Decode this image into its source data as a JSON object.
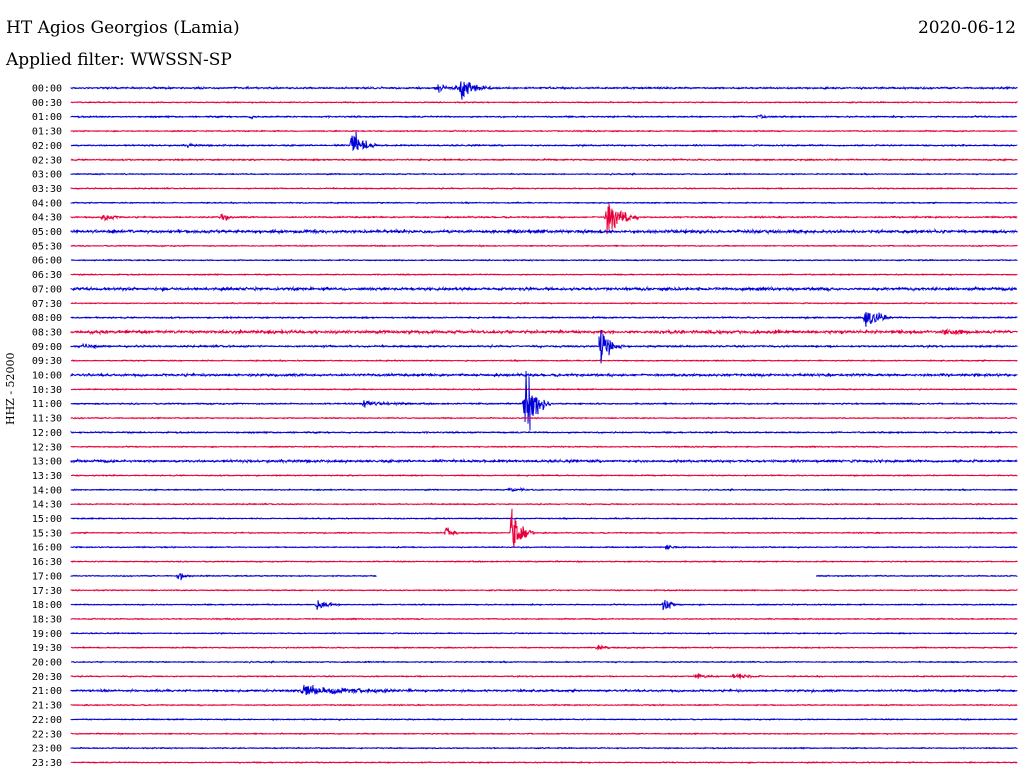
{
  "header": {
    "station_title": "HT Agios Georgios (Lamia)",
    "date": "2020-06-12",
    "filter_label": "Applied filter: WWSSN-SP",
    "channel_label": "HHZ - 52000"
  },
  "colors": {
    "blue": "#0000d8",
    "red": "#e8003a",
    "text": "#000000",
    "background": "#ffffff"
  },
  "chart_data": {
    "type": "line",
    "title": "HT Agios Georgios (Lamia)",
    "subtitle": "Applied filter: WWSSN-SP",
    "ylabel": "HHZ - 52000",
    "date": "2020-06-12",
    "trace_minutes": 30,
    "trace_colors": [
      "blue",
      "red"
    ],
    "categories": [
      "00:00",
      "00:30",
      "01:00",
      "01:30",
      "02:00",
      "02:30",
      "03:00",
      "03:30",
      "04:00",
      "04:30",
      "05:00",
      "05:30",
      "06:00",
      "06:30",
      "07:00",
      "07:30",
      "08:00",
      "08:30",
      "09:00",
      "09:30",
      "10:00",
      "10:30",
      "11:00",
      "11:30",
      "12:00",
      "12:30",
      "13:00",
      "13:30",
      "14:00",
      "14:30",
      "15:00",
      "15:30",
      "16:00",
      "16:30",
      "17:00",
      "17:30",
      "18:00",
      "18:30",
      "19:00",
      "19:30",
      "20:00",
      "20:30",
      "21:00",
      "21:30",
      "22:00",
      "22:30",
      "23:00",
      "23:30"
    ],
    "noise": [
      1.0,
      0.6,
      0.8,
      0.6,
      0.8,
      0.8,
      0.6,
      0.6,
      0.6,
      0.8,
      1.8,
      0.6,
      0.6,
      0.6,
      1.6,
      0.6,
      0.8,
      1.8,
      1.0,
      0.6,
      1.4,
      0.6,
      0.8,
      0.6,
      0.8,
      0.6,
      1.4,
      0.6,
      0.6,
      0.6,
      0.6,
      0.6,
      0.6,
      0.6,
      0.6,
      0.6,
      0.6,
      0.6,
      0.6,
      0.6,
      0.6,
      0.6,
      1.2,
      0.6,
      0.6,
      0.6,
      0.6,
      0.6
    ],
    "events": [
      {
        "trace": "00:00",
        "minute": 11.6,
        "amplitude": 5,
        "duration": 1.2
      },
      {
        "trace": "00:00",
        "minute": 12.4,
        "amplitude": 13,
        "duration": 1.0
      },
      {
        "trace": "01:00",
        "minute": 5.7,
        "amplitude": 2,
        "duration": 0.5
      },
      {
        "trace": "01:00",
        "minute": 21.8,
        "amplitude": 2,
        "duration": 0.5
      },
      {
        "trace": "02:00",
        "minute": 8.9,
        "amplitude": 19,
        "duration": 0.8
      },
      {
        "trace": "02:00",
        "minute": 3.7,
        "amplitude": 2,
        "duration": 0.4
      },
      {
        "trace": "04:30",
        "minute": 1.0,
        "amplitude": 7,
        "duration": 0.6
      },
      {
        "trace": "04:30",
        "minute": 4.8,
        "amplitude": 5,
        "duration": 0.4
      },
      {
        "trace": "04:30",
        "minute": 17.0,
        "amplitude": 26,
        "duration": 1.0
      },
      {
        "trace": "08:00",
        "minute": 25.2,
        "amplitude": 17,
        "duration": 0.9
      },
      {
        "trace": "08:30",
        "minute": 27.7,
        "amplitude": 4,
        "duration": 1.0
      },
      {
        "trace": "09:00",
        "minute": 16.8,
        "amplitude": 28,
        "duration": 0.7
      },
      {
        "trace": "09:00",
        "minute": 0.4,
        "amplitude": 3,
        "duration": 0.8
      },
      {
        "trace": "11:00",
        "minute": 9.3,
        "amplitude": 4,
        "duration": 1.5
      },
      {
        "trace": "11:00",
        "minute": 14.4,
        "amplitude": 44,
        "duration": 0.8
      },
      {
        "trace": "14:00",
        "minute": 13.9,
        "amplitude": 2,
        "duration": 1.0
      },
      {
        "trace": "15:30",
        "minute": 11.9,
        "amplitude": 8,
        "duration": 0.4
      },
      {
        "trace": "15:30",
        "minute": 14.0,
        "amplitude": 38,
        "duration": 0.7
      },
      {
        "trace": "16:00",
        "minute": 18.9,
        "amplitude": 4,
        "duration": 0.4
      },
      {
        "trace": "17:00",
        "minute": 3.4,
        "amplitude": 7,
        "duration": 0.4
      },
      {
        "trace": "18:00",
        "minute": 7.8,
        "amplitude": 7,
        "duration": 0.7
      },
      {
        "trace": "18:00",
        "minute": 18.8,
        "amplitude": 8,
        "duration": 0.6
      },
      {
        "trace": "19:30",
        "minute": 16.7,
        "amplitude": 2,
        "duration": 1.0
      },
      {
        "trace": "20:30",
        "minute": 19.8,
        "amplitude": 3,
        "duration": 0.8
      },
      {
        "trace": "20:30",
        "minute": 21.0,
        "amplitude": 4,
        "duration": 1.0
      },
      {
        "trace": "21:00",
        "minute": 7.3,
        "amplitude": 6,
        "duration": 4.0
      }
    ],
    "gaps": [
      {
        "trace": "17:00",
        "from_minute": 9.7,
        "to_minute": 23.6
      }
    ]
  }
}
